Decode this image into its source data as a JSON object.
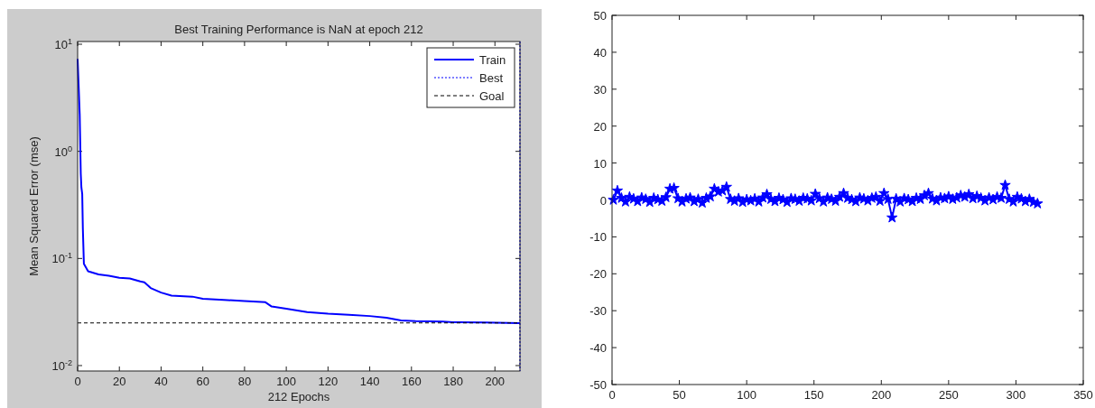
{
  "chart_data": [
    {
      "type": "line",
      "title": "Best Training Performance is NaN at epoch 212",
      "xlabel": "212 Epochs",
      "ylabel": "Mean Squared Error  (mse)",
      "log": "y",
      "xlim": [
        0,
        212
      ],
      "xticks": [
        0,
        20,
        40,
        60,
        80,
        100,
        120,
        140,
        160,
        180,
        200
      ],
      "ylim": [
        0.0089,
        10.6
      ],
      "yticks": [
        {
          "value": 0.01,
          "label": "10$^{-2}$"
        },
        {
          "value": 0.1,
          "label": "10$^{-1}$"
        },
        {
          "value": 1,
          "label": "10$^{0}$"
        },
        {
          "value": 10,
          "label": "10$^{1}$"
        }
      ],
      "grid": false,
      "legend": "top right",
      "line_style": "solid",
      "marker": "none",
      "series": [
        {
          "name": "Train",
          "color": "#0000ff",
          "x": [
            0,
            1,
            1.5,
            1.8,
            2.2,
            2.5,
            3,
            5,
            10,
            15,
            20,
            25,
            30,
            32,
            35,
            40,
            45,
            55,
            60,
            70,
            80,
            90,
            93,
            100,
            110,
            120,
            130,
            140,
            148,
            155,
            162,
            175,
            180,
            195,
            212
          ],
          "values": [
            7.3,
            2.2,
            0.62,
            0.46,
            0.4,
            0.19,
            0.089,
            0.076,
            0.071,
            0.069,
            0.066,
            0.065,
            0.061,
            0.06,
            0.053,
            0.048,
            0.045,
            0.044,
            0.042,
            0.041,
            0.04,
            0.039,
            0.0356,
            0.034,
            0.0316,
            0.0305,
            0.0298,
            0.029,
            0.028,
            0.0264,
            0.026,
            0.0258,
            0.0254,
            0.0252,
            0.0249
          ]
        }
      ],
      "ref_lines": [
        {
          "axis": "x",
          "value": 212,
          "label": "Best",
          "color": "#0000ff",
          "line_style": "dotted"
        },
        {
          "axis": "y",
          "value": 0.025,
          "label": "Goal",
          "color": "#000000",
          "line_style": "dashed"
        }
      ]
    },
    {
      "type": "line",
      "xlim": [
        0,
        350
      ],
      "xticks": [
        0,
        50,
        100,
        150,
        200,
        250,
        300,
        350
      ],
      "ylim": [
        -50,
        50
      ],
      "yticks": [
        -50,
        -40,
        -30,
        -20,
        -10,
        0,
        10,
        20,
        30,
        40,
        50
      ],
      "grid": false,
      "legend": false,
      "marker": "star",
      "line_style": "solid",
      "series": [
        {
          "color": "#0000ff",
          "x": [
            1,
            4,
            7,
            10,
            13,
            16,
            19,
            22,
            25,
            28,
            31,
            34,
            37,
            40,
            43,
            46,
            49,
            52,
            55,
            58,
            61,
            64,
            67,
            70,
            73,
            76,
            79,
            82,
            85,
            88,
            91,
            94,
            97,
            100,
            103,
            106,
            109,
            112,
            115,
            118,
            121,
            124,
            127,
            130,
            133,
            136,
            139,
            142,
            145,
            148,
            151,
            154,
            157,
            160,
            163,
            166,
            169,
            172,
            175,
            178,
            181,
            184,
            187,
            190,
            193,
            196,
            199,
            202,
            205,
            208,
            211,
            214,
            217,
            220,
            223,
            226,
            229,
            232,
            235,
            238,
            241,
            244,
            247,
            250,
            253,
            256,
            259,
            262,
            265,
            268,
            271,
            274,
            277,
            280,
            283,
            286,
            289,
            292,
            295,
            298,
            301,
            304,
            307,
            310,
            313,
            316
          ],
          "values": [
            0,
            2.5,
            0.5,
            -0.5,
            0.8,
            0.3,
            -0.4,
            0.6,
            0.2,
            -0.6,
            0.5,
            0.1,
            -0.3,
            0.7,
            3,
            3.2,
            0.4,
            -0.5,
            0.3,
            0.6,
            -0.4,
            0.2,
            -0.8,
            0.5,
            0.9,
            3,
            2.2,
            2.5,
            3.5,
            0.2,
            -0.3,
            0.4,
            -0.6,
            0.1,
            -0.2,
            0.3,
            -0.5,
            0.6,
            1.5,
            0.2,
            -0.4,
            0.5,
            0.1,
            -0.6,
            0.4,
            0.2,
            -0.3,
            0.5,
            0.3,
            -0.2,
            1.6,
            0.4,
            -0.5,
            0.6,
            0.2,
            -0.3,
            0.8,
            1.8,
            0.5,
            0.1,
            -0.4,
            0.6,
            0.3,
            -0.2,
            0.5,
            0.8,
            -0.3,
            1.8,
            0.2,
            -4.8,
            0.3,
            -0.5,
            0.4,
            0.1,
            -0.4,
            0.5,
            0.2,
            1.2,
            1.8,
            0.3,
            -0.2,
            0.6,
            0.4,
            0.9,
            0.2,
            0.6,
            1.2,
            0.8,
            1.5,
            0.4,
            1,
            0.5,
            -0.2,
            0.6,
            0.1,
            0.8,
            0.5,
            4,
            0.2,
            -0.5,
            0.8,
            0.3,
            -0.4,
            0.2,
            -0.6,
            -1
          ]
        }
      ]
    }
  ]
}
